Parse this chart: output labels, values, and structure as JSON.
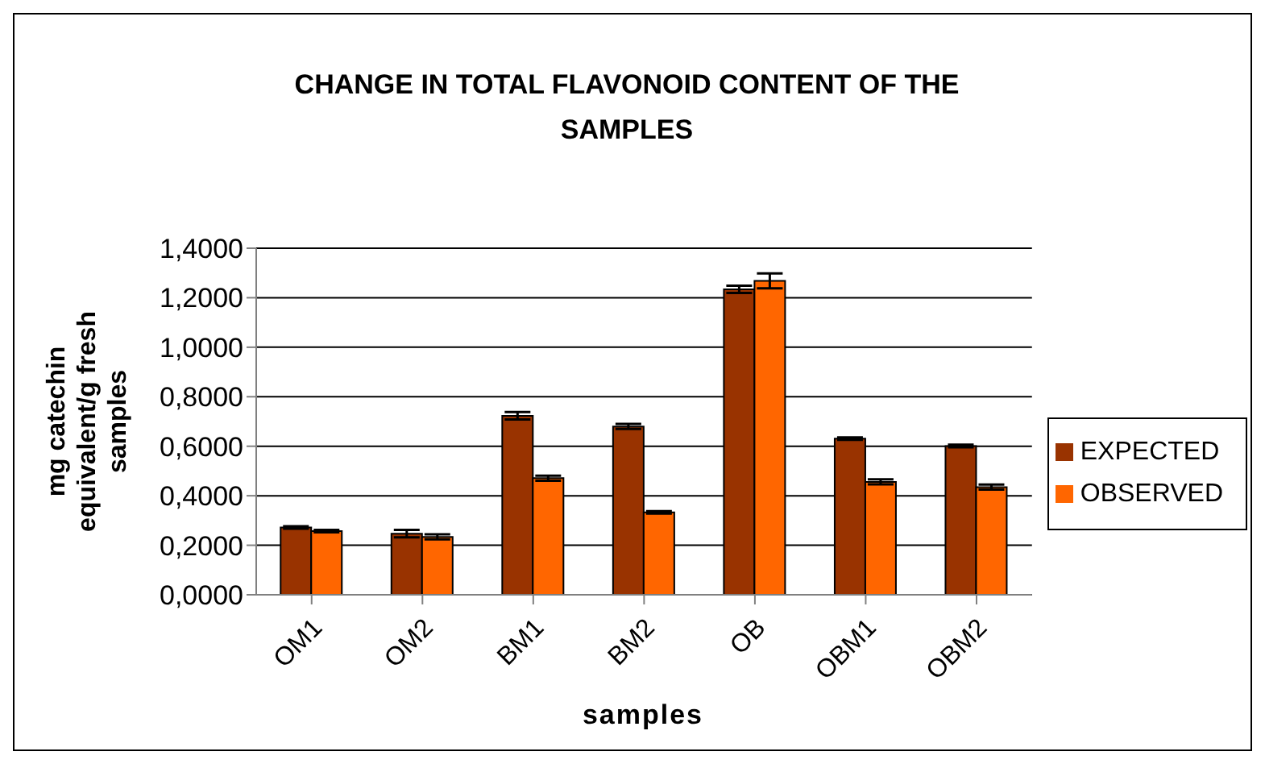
{
  "chart_data": {
    "type": "bar",
    "title": "CHANGE IN TOTAL FLAVONOID CONTENT OF THE SAMPLES",
    "xlabel": "samples",
    "ylabel": "mg catechin equivalent/g fresh samples",
    "categories": [
      "OM1",
      "OM2",
      "BM1",
      "BM2",
      "OB",
      "OBM1",
      "OBM2"
    ],
    "series": [
      {
        "name": "EXPECTED",
        "color": "#993300",
        "values": [
          0.272,
          0.247,
          0.723,
          0.68,
          1.234,
          0.631,
          0.601
        ],
        "errors": [
          0.005,
          0.015,
          0.015,
          0.01,
          0.015,
          0.005,
          0.005
        ]
      },
      {
        "name": "OBSERVED",
        "color": "#ff6600",
        "values": [
          0.257,
          0.234,
          0.471,
          0.333,
          1.268,
          0.456,
          0.435
        ],
        "errors": [
          0.005,
          0.01,
          0.01,
          0.005,
          0.03,
          0.01,
          0.01
        ]
      }
    ],
    "ylim": [
      0,
      1.4
    ],
    "yticks": [
      {
        "value": 0,
        "label": "0,0000"
      },
      {
        "value": 0.2,
        "label": "0,2000"
      },
      {
        "value": 0.4,
        "label": "0,4000"
      },
      {
        "value": 0.6,
        "label": "0,6000"
      },
      {
        "value": 0.8,
        "label": "0,8000"
      },
      {
        "value": 1.0,
        "label": "1,0000"
      },
      {
        "value": 1.2,
        "label": "1,2000"
      },
      {
        "value": 1.4,
        "label": "1,4000"
      }
    ],
    "grid": "y",
    "legend": "right"
  }
}
